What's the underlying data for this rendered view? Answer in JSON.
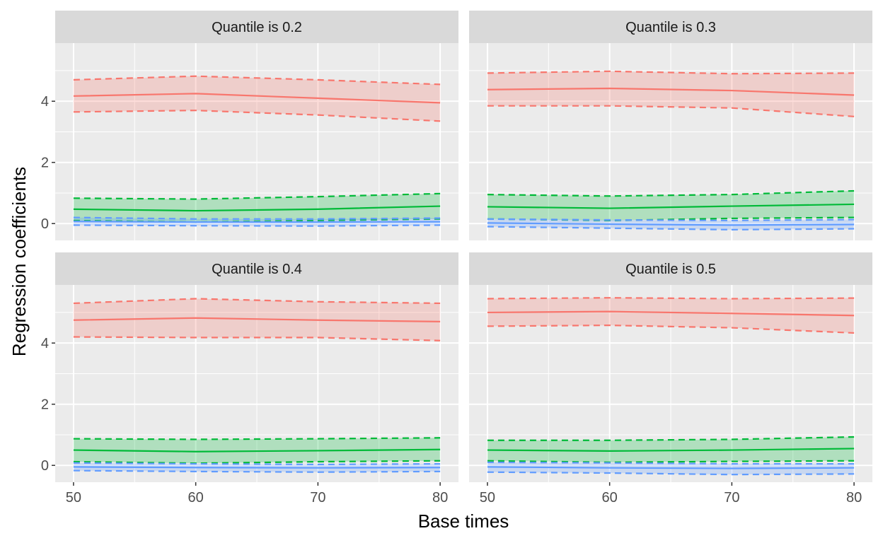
{
  "chart_data": {
    "type": "line",
    "xlabel": "Base times",
    "ylabel": "Regression coefficients",
    "x": [
      50,
      60,
      70,
      80
    ],
    "x_ticks": [
      50,
      60,
      70,
      80
    ],
    "y_ticks": [
      0,
      2,
      4
    ],
    "ylim": [
      -0.55,
      5.9
    ],
    "xlim": [
      48.5,
      81.5
    ],
    "grid": true,
    "legend": "none",
    "layout": "2x2 facet grid",
    "series_colors": [
      "#F8766D",
      "#00BA38",
      "#619CFF"
    ],
    "panels": [
      {
        "title": "Quantile is 0.2",
        "series": [
          {
            "estimate": [
              4.17,
              4.25,
              4.1,
              3.95
            ],
            "lower": [
              3.65,
              3.7,
              3.55,
              3.35
            ],
            "upper": [
              4.7,
              4.82,
              4.7,
              4.55
            ]
          },
          {
            "estimate": [
              0.47,
              0.42,
              0.47,
              0.57
            ],
            "lower": [
              0.1,
              0.05,
              0.1,
              0.15
            ],
            "upper": [
              0.83,
              0.8,
              0.88,
              0.98
            ]
          },
          {
            "estimate": [
              0.07,
              0.05,
              0.05,
              0.06
            ],
            "lower": [
              -0.05,
              -0.07,
              -0.08,
              -0.05
            ],
            "upper": [
              0.2,
              0.15,
              0.15,
              0.18
            ]
          }
        ]
      },
      {
        "title": "Quantile is 0.3",
        "series": [
          {
            "estimate": [
              4.38,
              4.42,
              4.35,
              4.2
            ],
            "lower": [
              3.85,
              3.85,
              3.78,
              3.5
            ],
            "upper": [
              4.92,
              4.98,
              4.9,
              4.92
            ]
          },
          {
            "estimate": [
              0.55,
              0.5,
              0.57,
              0.63
            ],
            "lower": [
              0.15,
              0.1,
              0.17,
              0.2
            ],
            "upper": [
              0.95,
              0.9,
              0.95,
              1.07
            ]
          },
          {
            "estimate": [
              0.02,
              -0.02,
              -0.05,
              -0.03
            ],
            "lower": [
              -0.1,
              -0.15,
              -0.2,
              -0.17
            ],
            "upper": [
              0.15,
              0.12,
              0.1,
              0.13
            ]
          }
        ]
      },
      {
        "title": "Quantile is 0.4",
        "series": [
          {
            "estimate": [
              4.75,
              4.82,
              4.75,
              4.7
            ],
            "lower": [
              4.2,
              4.18,
              4.18,
              4.08
            ],
            "upper": [
              5.3,
              5.45,
              5.35,
              5.3
            ]
          },
          {
            "estimate": [
              0.5,
              0.45,
              0.48,
              0.52
            ],
            "lower": [
              0.12,
              0.07,
              0.12,
              0.15
            ],
            "upper": [
              0.87,
              0.85,
              0.87,
              0.9
            ]
          },
          {
            "estimate": [
              -0.05,
              -0.07,
              -0.08,
              -0.07
            ],
            "lower": [
              -0.17,
              -0.2,
              -0.22,
              -0.2
            ],
            "upper": [
              0.08,
              0.05,
              0.03,
              0.05
            ]
          }
        ]
      },
      {
        "title": "Quantile is 0.5",
        "series": [
          {
            "estimate": [
              5.0,
              5.03,
              4.97,
              4.9
            ],
            "lower": [
              4.55,
              4.58,
              4.5,
              4.33
            ],
            "upper": [
              5.45,
              5.48,
              5.45,
              5.47
            ]
          },
          {
            "estimate": [
              0.5,
              0.47,
              0.5,
              0.55
            ],
            "lower": [
              0.15,
              0.1,
              0.13,
              0.15
            ],
            "upper": [
              0.82,
              0.82,
              0.85,
              0.93
            ]
          },
          {
            "estimate": [
              -0.05,
              -0.08,
              -0.1,
              -0.08
            ],
            "lower": [
              -0.22,
              -0.25,
              -0.3,
              -0.28
            ],
            "upper": [
              0.1,
              0.08,
              0.05,
              0.05
            ]
          }
        ]
      }
    ]
  }
}
